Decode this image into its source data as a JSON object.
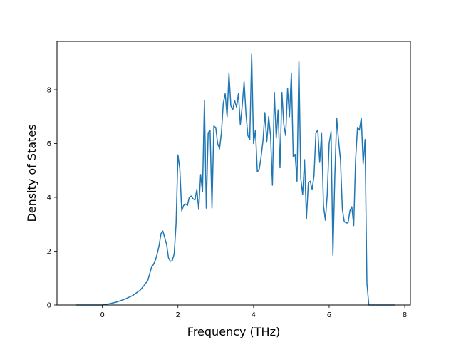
{
  "chart_data": {
    "type": "line",
    "title": "",
    "xlabel": "Frequency (THz)",
    "ylabel": "Density of States",
    "xlim": [
      -1.2,
      8.15
    ],
    "ylim": [
      0,
      9.8
    ],
    "xticks": [
      0,
      2,
      4,
      6,
      8
    ],
    "yticks": [
      0,
      2,
      4,
      6,
      8
    ],
    "xtick_labels": [
      "0",
      "2",
      "4",
      "6",
      "8"
    ],
    "ytick_labels": [
      "0",
      "2",
      "4",
      "6",
      "8"
    ],
    "grid": false,
    "legend": "none",
    "series": [
      {
        "color": "#1f77b4",
        "x": [
          -0.7,
          -0.5,
          0.0,
          0.2,
          0.4,
          0.6,
          0.8,
          1.0,
          1.1,
          1.2,
          1.3,
          1.35,
          1.4,
          1.45,
          1.5,
          1.55,
          1.6,
          1.65,
          1.7,
          1.75,
          1.8,
          1.85,
          1.9,
          1.95,
          2.0,
          2.05,
          2.1,
          2.15,
          2.2,
          2.25,
          2.3,
          2.35,
          2.4,
          2.45,
          2.5,
          2.55,
          2.6,
          2.65,
          2.7,
          2.75,
          2.8,
          2.85,
          2.9,
          2.95,
          3.0,
          3.05,
          3.1,
          3.15,
          3.2,
          3.25,
          3.3,
          3.35,
          3.4,
          3.45,
          3.5,
          3.55,
          3.6,
          3.65,
          3.7,
          3.75,
          3.8,
          3.85,
          3.9,
          3.95,
          4.0,
          4.05,
          4.1,
          4.15,
          4.2,
          4.25,
          4.3,
          4.35,
          4.4,
          4.45,
          4.5,
          4.55,
          4.6,
          4.65,
          4.7,
          4.75,
          4.8,
          4.85,
          4.9,
          4.95,
          5.0,
          5.05,
          5.1,
          5.15,
          5.2,
          5.25,
          5.3,
          5.35,
          5.4,
          5.45,
          5.5,
          5.55,
          5.6,
          5.65,
          5.7,
          5.75,
          5.8,
          5.85,
          5.9,
          5.95,
          6.0,
          6.05,
          6.1,
          6.15,
          6.2,
          6.25,
          6.3,
          6.35,
          6.4,
          6.45,
          6.5,
          6.55,
          6.6,
          6.65,
          6.7,
          6.75,
          6.8,
          6.85,
          6.9,
          6.95,
          7.0,
          7.05,
          7.1,
          7.3,
          7.5,
          7.75
        ],
        "y": [
          0.0,
          0.0,
          0.0,
          0.05,
          0.12,
          0.22,
          0.35,
          0.55,
          0.72,
          0.9,
          1.4,
          1.5,
          1.65,
          1.9,
          2.2,
          2.65,
          2.75,
          2.5,
          2.25,
          1.75,
          1.62,
          1.65,
          1.9,
          3.0,
          5.58,
          5.05,
          3.5,
          3.7,
          3.75,
          3.7,
          4.0,
          4.05,
          3.95,
          3.9,
          4.3,
          3.55,
          4.85,
          4.2,
          7.6,
          3.6,
          6.4,
          6.5,
          3.6,
          6.65,
          6.6,
          6.0,
          5.8,
          6.4,
          7.5,
          7.85,
          7.0,
          8.6,
          7.4,
          7.25,
          7.6,
          7.35,
          7.85,
          6.7,
          7.4,
          8.3,
          7.1,
          6.3,
          6.15,
          9.32,
          6.0,
          6.5,
          4.95,
          5.05,
          5.5,
          6.1,
          7.15,
          6.05,
          7.0,
          6.3,
          4.45,
          7.9,
          6.2,
          7.25,
          5.1,
          7.9,
          6.7,
          6.3,
          8.05,
          7.0,
          8.62,
          5.5,
          5.6,
          4.6,
          9.05,
          4.7,
          4.1,
          5.4,
          3.2,
          4.55,
          4.6,
          4.3,
          4.8,
          6.4,
          6.5,
          5.3,
          6.4,
          3.7,
          3.15,
          4.1,
          6.0,
          6.45,
          1.85,
          4.75,
          6.95,
          6.1,
          5.4,
          3.55,
          3.1,
          3.05,
          3.05,
          3.5,
          3.65,
          2.95,
          5.4,
          6.6,
          6.5,
          6.95,
          5.25,
          6.15,
          0.8,
          0.0,
          0.0,
          0.0,
          0.0,
          0.0
        ]
      }
    ]
  }
}
